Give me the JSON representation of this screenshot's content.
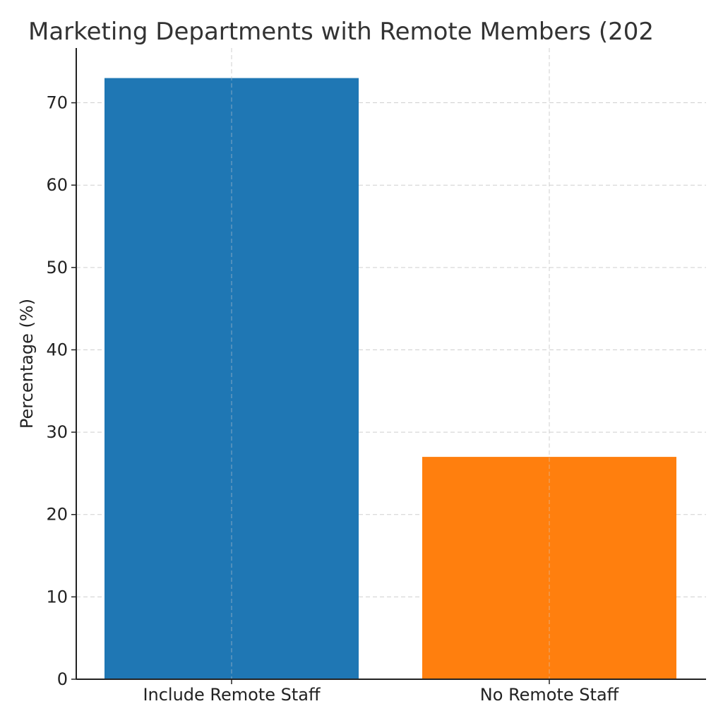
{
  "chart_data": {
    "type": "bar",
    "title": "Marketing Departments with Remote Members (202",
    "xlabel": "",
    "ylabel": "Percentage (%)",
    "categories": [
      "Include Remote Staff",
      "No Remote Staff"
    ],
    "values": [
      73,
      27
    ],
    "colors": [
      "#1f77b4",
      "#ff7f0e"
    ],
    "ylim": [
      0,
      76.65
    ],
    "yticks": [
      0,
      10,
      20,
      30,
      40,
      50,
      60,
      70
    ],
    "grid": true,
    "grid_color": "#cfcfcf"
  }
}
